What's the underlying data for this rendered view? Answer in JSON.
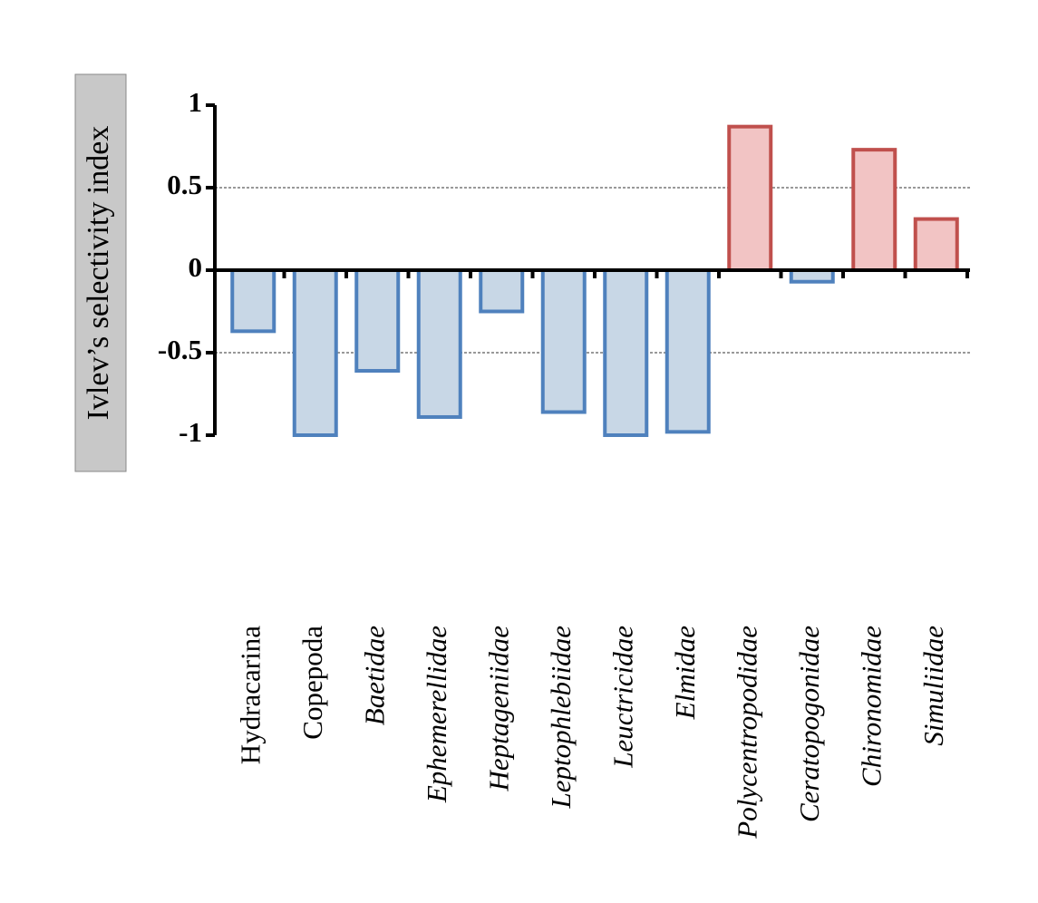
{
  "chart_data": {
    "type": "bar",
    "y_label": "Ivlev’s selectivity index",
    "categories": [
      "Hydracarina",
      "Copepoda",
      "Baetidae",
      "Ephemerellidae",
      "Heptageniidae",
      "Leptophlebiidae",
      "Leuctricidae",
      "Elmidae",
      "Polycentropodidae",
      "Ceratopogonidae",
      "Chironomidae",
      "Simuliidae"
    ],
    "italic": [
      false,
      false,
      true,
      true,
      true,
      true,
      true,
      true,
      true,
      true,
      true,
      true
    ],
    "values": [
      -0.37,
      -1.0,
      -0.61,
      -0.89,
      -0.25,
      -0.86,
      -1.0,
      -0.98,
      0.87,
      -0.07,
      0.73,
      0.31
    ],
    "fill_colors": [
      "#c8d7e6",
      "#c8d7e6",
      "#c8d7e6",
      "#c8d7e6",
      "#c8d7e6",
      "#c8d7e6",
      "#c8d7e6",
      "#c8d7e6",
      "#f2c4c4",
      "#c8d7e6",
      "#f2c4c4",
      "#f2c4c4"
    ],
    "edge_colors": [
      "#4f81bd",
      "#4f81bd",
      "#4f81bd",
      "#4f81bd",
      "#4f81bd",
      "#4f81bd",
      "#4f81bd",
      "#4f81bd",
      "#c0504d",
      "#4f81bd",
      "#c0504d",
      "#c0504d"
    ],
    "ylim": [
      -1,
      1
    ],
    "yticks": [
      1,
      0.5,
      0,
      -0.5,
      -1
    ],
    "dashed_gridlines": [
      0.5,
      -0.5
    ]
  }
}
